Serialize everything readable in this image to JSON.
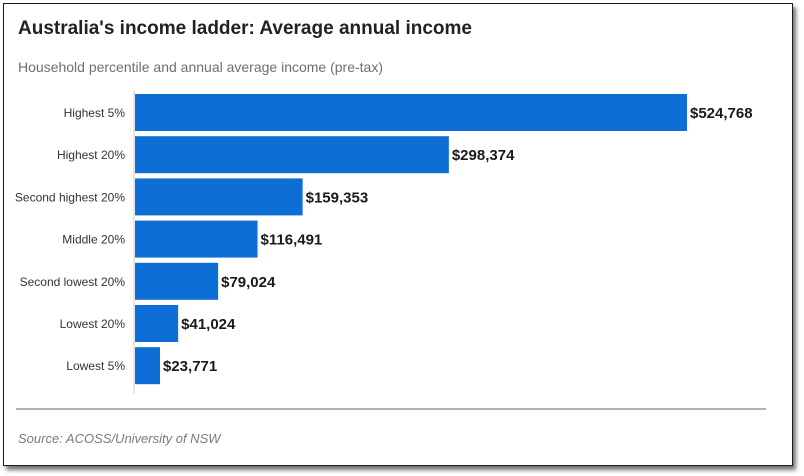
{
  "title": "Australia's income ladder: Average annual income",
  "subtitle": "Household percentile and annual average income (pre-tax)",
  "source": "Source: ACOSS/University of NSW",
  "chart_data": {
    "type": "bar",
    "orientation": "horizontal",
    "categories": [
      "Highest 5%",
      "Highest 20%",
      "Second highest 20%",
      "Middle 20%",
      "Second lowest 20%",
      "Lowest 20%",
      "Lowest 5%"
    ],
    "values": [
      524768,
      298374,
      159353,
      116491,
      79024,
      41024,
      23771
    ],
    "value_labels": [
      "$524,768",
      "$298,374",
      "$159,353",
      "$116,491",
      "$79,024",
      "$41,024",
      "$23,771"
    ],
    "xlim": [
      0,
      524768
    ],
    "grid": false,
    "bar_color": "#0d6ed6"
  }
}
